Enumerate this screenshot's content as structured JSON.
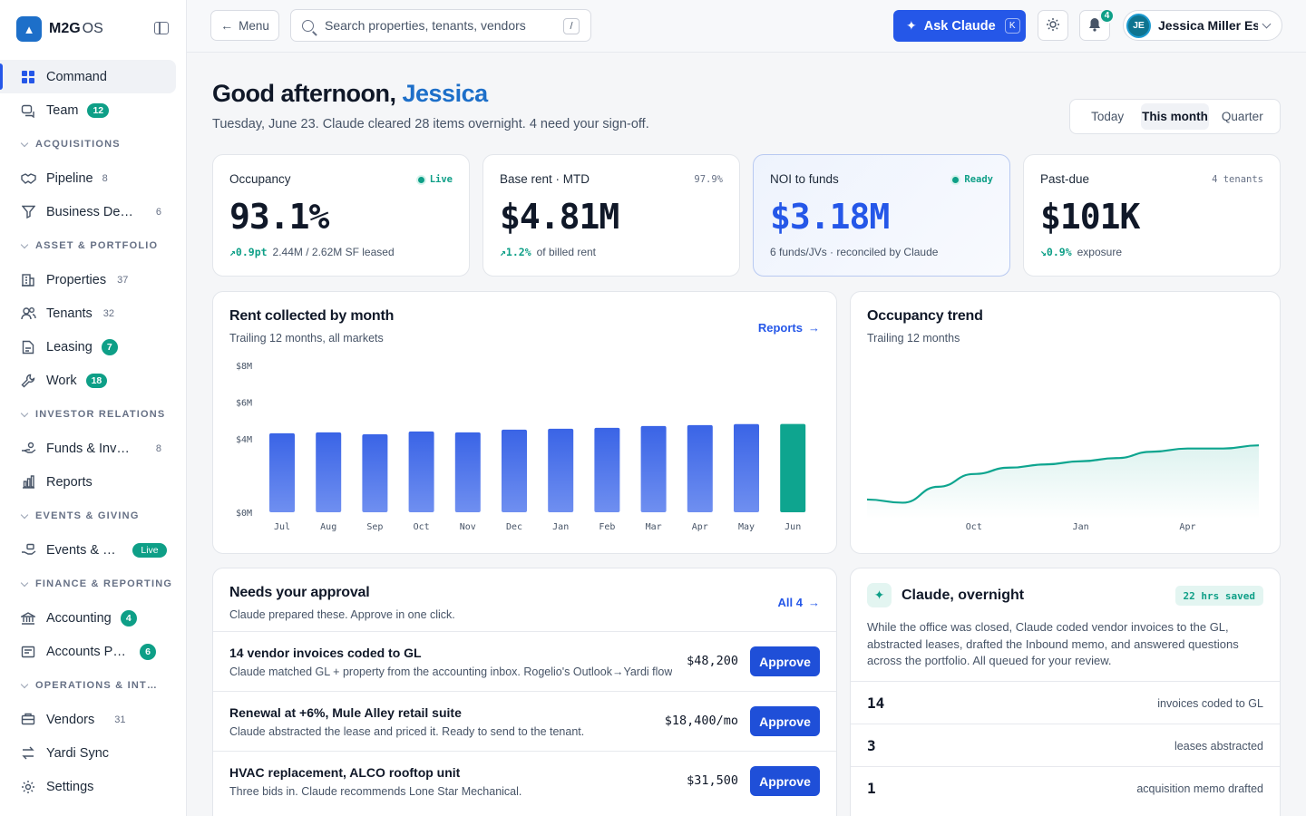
{
  "brand": {
    "name": "M2G",
    "suffix": "OS"
  },
  "sidebar": {
    "command": "Command",
    "team": {
      "label": "Team",
      "count": "12"
    },
    "acquisitions": {
      "header": "ACQUISITIONS",
      "pipeline": {
        "label": "Pipeline",
        "count": "8"
      },
      "bizdev": {
        "label": "Business Development",
        "count": "6"
      }
    },
    "asset": {
      "header": "ASSET & PORTFOLIO",
      "properties": {
        "label": "Properties",
        "count": "37"
      },
      "tenants": {
        "label": "Tenants",
        "count": "32"
      },
      "leasing": {
        "label": "Leasing",
        "count": "7"
      },
      "work": {
        "label": "Work",
        "count": "18"
      }
    },
    "investor": {
      "header": "INVESTOR RELATIONS",
      "funds": {
        "label": "Funds & Investors",
        "count": "8"
      },
      "reports": {
        "label": "Reports"
      }
    },
    "events": {
      "header": "EVENTS & GIVING",
      "events": {
        "label": "Events & Sponsorships",
        "badge": "Live"
      }
    },
    "finance": {
      "header": "FINANCE & REPORTING",
      "accounting": {
        "label": "Accounting",
        "count": "4"
      },
      "ap": {
        "label": "Accounts Payable",
        "count": "6"
      }
    },
    "ops": {
      "header": "OPERATIONS & INTERNAL",
      "vendors": {
        "label": "Vendors",
        "count": "31"
      },
      "yardi": {
        "label": "Yardi Sync"
      },
      "settings": {
        "label": "Settings"
      }
    }
  },
  "topbar": {
    "menu": "Menu",
    "search_placeholder": "Search properties, tenants, vendors",
    "search_kbd": "/",
    "ask": "Ask Claude",
    "ask_kbd": "K",
    "notifications": "4",
    "user_initials": "JE",
    "user_name": "Jessica Miller Essl"
  },
  "header": {
    "greeting": "Good afternoon,",
    "name": "Jessica",
    "subtitle": "Tuesday, June 23. Claude cleared 28 items overnight. 4 need your sign-off.",
    "ranges": [
      "Today",
      "This month",
      "Quarter"
    ]
  },
  "kpis": [
    {
      "label": "Occupancy",
      "meta": "Live",
      "value": "93.1%",
      "delta": "↗0.9pt",
      "foot": "2.44M / 2.62M SF leased"
    },
    {
      "label": "Base rent · MTD",
      "meta": "97.9%",
      "value": "$4.81M",
      "delta": "↗1.2%",
      "foot": "of billed rent"
    },
    {
      "label": "NOI to funds",
      "meta": "Ready",
      "value": "$3.18M",
      "delta": "",
      "foot": "6 funds/JVs · reconciled by Claude"
    },
    {
      "label": "Past-due",
      "meta": "4 tenants",
      "value": "$101K",
      "delta": "↘0.9%",
      "foot": "exposure"
    }
  ],
  "rent_panel": {
    "title": "Rent collected by month",
    "subtitle": "Trailing 12 months, all markets",
    "link": "Reports"
  },
  "occ_panel": {
    "title": "Occupancy trend",
    "subtitle": "Trailing 12 months",
    "x_labels": [
      "Oct",
      "Jan",
      "Apr"
    ]
  },
  "chart_data": [
    {
      "type": "bar",
      "title": "Rent collected by month",
      "subtitle": "Trailing 12 months, all markets",
      "categories": [
        "Jul",
        "Aug",
        "Sep",
        "Oct",
        "Nov",
        "Dec",
        "Jan",
        "Feb",
        "Mar",
        "Apr",
        "May",
        "Jun"
      ],
      "values": [
        4.3,
        4.35,
        4.25,
        4.4,
        4.35,
        4.5,
        4.55,
        4.6,
        4.7,
        4.75,
        4.8,
        4.81
      ],
      "y_ticks": [
        "$0M",
        "$4M",
        "$6M",
        "$8M"
      ],
      "ylim": [
        0,
        8
      ],
      "colors": {
        "bar": "#3a64e6",
        "current": "#0ea58f"
      }
    },
    {
      "type": "area",
      "title": "Occupancy trend",
      "subtitle": "Trailing 12 months",
      "x": [
        "Jul",
        "Aug",
        "Sep",
        "Oct",
        "Nov",
        "Dec",
        "Jan",
        "Feb",
        "Mar",
        "Apr",
        "May",
        "Jun"
      ],
      "values": [
        91.4,
        91.3,
        91.8,
        92.2,
        92.4,
        92.5,
        92.6,
        92.7,
        92.9,
        93.0,
        93.0,
        93.1
      ],
      "x_labels": [
        "Oct",
        "Jan",
        "Apr"
      ],
      "ylim": [
        90.8,
        94.5
      ],
      "colors": {
        "line": "#0ea58f"
      }
    }
  ],
  "approvals": {
    "title": "Needs your approval",
    "subtitle": "Claude prepared these. Approve in one click.",
    "link": "All 4",
    "button": "Approve",
    "items": [
      {
        "title": "14 vendor invoices coded to GL",
        "desc": "Claude matched GL + property from the accounting inbox. Rogelio's Outlook→Yardi flow",
        "amount": "$48,200"
      },
      {
        "title": "Renewal at +6%, Mule Alley retail suite",
        "desc": "Claude abstracted the lease and priced it. Ready to send to the tenant.",
        "amount": "$18,400/mo"
      },
      {
        "title": "HVAC replacement, ALCO rooftop unit",
        "desc": "Three bids in. Claude recommends Lone Star Mechanical.",
        "amount": "$31,500"
      }
    ]
  },
  "claude": {
    "title": "Claude, overnight",
    "badge": "22 hrs saved",
    "desc": "While the office was closed, Claude coded vendor invoices to the GL, abstracted leases, drafted the Inbound memo, and answered questions across the portfolio. All queued for your review.",
    "stats": [
      {
        "num": "14",
        "label": "invoices coded to GL"
      },
      {
        "num": "3",
        "label": "leases abstracted"
      },
      {
        "num": "1",
        "label": "acquisition memo drafted"
      }
    ]
  }
}
